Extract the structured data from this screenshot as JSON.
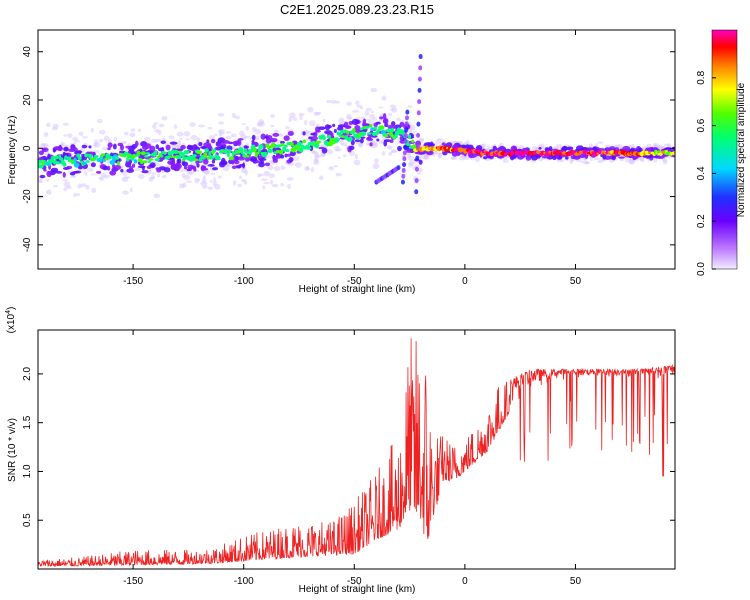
{
  "figure": {
    "title": "C2E1.2025.089.23.23.R15"
  },
  "chart_data": [
    {
      "type": "heatmap",
      "title": "C2E1.2025.089.23.23.R15",
      "xlabel": "Height of straight line (km)",
      "ylabel": "Frequency (Hz)",
      "xlim": [
        -193,
        95
      ],
      "ylim": [
        -50,
        49
      ],
      "xticks": [
        -150,
        -100,
        -50,
        0,
        50
      ],
      "yticks": [
        -40,
        -20,
        0,
        20,
        40
      ],
      "colorbar": {
        "label": "Normalized spectral amplitude",
        "range": [
          0.0,
          1.0
        ],
        "ticks": [
          0.0,
          0.2,
          0.4,
          0.6,
          0.8
        ]
      },
      "colormap": [
        "#e8e0ff",
        "#7a00ff",
        "#2020ff",
        "#00d0ff",
        "#00ff80",
        "#40ff00",
        "#ffff00",
        "#ff8000",
        "#ff0000",
        "#ff00a0"
      ],
      "ridge": {
        "description_points_x": [
          -193,
          -175,
          -150,
          -125,
          -100,
          -75,
          -50,
          -40,
          -30,
          -25,
          -22,
          -18,
          -10,
          0,
          10,
          30,
          60,
          95
        ],
        "frequency_y": [
          -6,
          -5,
          -4,
          -3,
          -2,
          1,
          6,
          8,
          6,
          3,
          -1,
          0,
          0,
          -1,
          -2,
          -2,
          -2,
          -2
        ],
        "amplitude": [
          0.45,
          0.45,
          0.48,
          0.5,
          0.5,
          0.5,
          0.5,
          0.45,
          0.45,
          0.4,
          0.7,
          0.8,
          0.8,
          0.9,
          0.95,
          0.95,
          0.95,
          0.6
        ]
      }
    },
    {
      "type": "line",
      "xlabel": "Height of straight line (km)",
      "ylabel": "SNR (10 * v/v)",
      "exponent_label": "(x10",
      "exponent_value": "4",
      "xlim": [
        -193,
        95
      ],
      "ylim": [
        0.0,
        2.45
      ],
      "xticks": [
        -150,
        -100,
        -50,
        0,
        50
      ],
      "yticks": [
        0.5,
        1.0,
        1.5,
        2.0
      ],
      "color": "#ee2222",
      "envelope": {
        "x": [
          -193,
          -175,
          -150,
          -125,
          -110,
          -100,
          -90,
          -75,
          -60,
          -50,
          -40,
          -30,
          -25,
          -20,
          -17,
          -15,
          -12,
          -10,
          -5,
          0,
          5,
          10,
          15,
          20,
          25,
          30,
          40,
          50,
          60,
          80,
          95
        ],
        "base": [
          0.03,
          0.03,
          0.04,
          0.05,
          0.06,
          0.08,
          0.1,
          0.12,
          0.14,
          0.15,
          0.3,
          0.4,
          0.6,
          0.5,
          0.2,
          0.5,
          0.7,
          0.9,
          0.9,
          1.0,
          1.1,
          1.2,
          1.4,
          1.6,
          1.7,
          1.8,
          1.9,
          1.95,
          1.95,
          1.95,
          1.9
        ],
        "peak": [
          0.1,
          0.12,
          0.2,
          0.2,
          0.25,
          0.35,
          0.4,
          0.5,
          0.5,
          0.7,
          1.0,
          1.4,
          2.4,
          2.45,
          2.3,
          1.6,
          1.4,
          1.4,
          1.3,
          1.35,
          1.5,
          1.7,
          1.9,
          1.95,
          2.0,
          2.05,
          2.05,
          2.05,
          2.05,
          2.05,
          2.1
        ]
      }
    }
  ]
}
